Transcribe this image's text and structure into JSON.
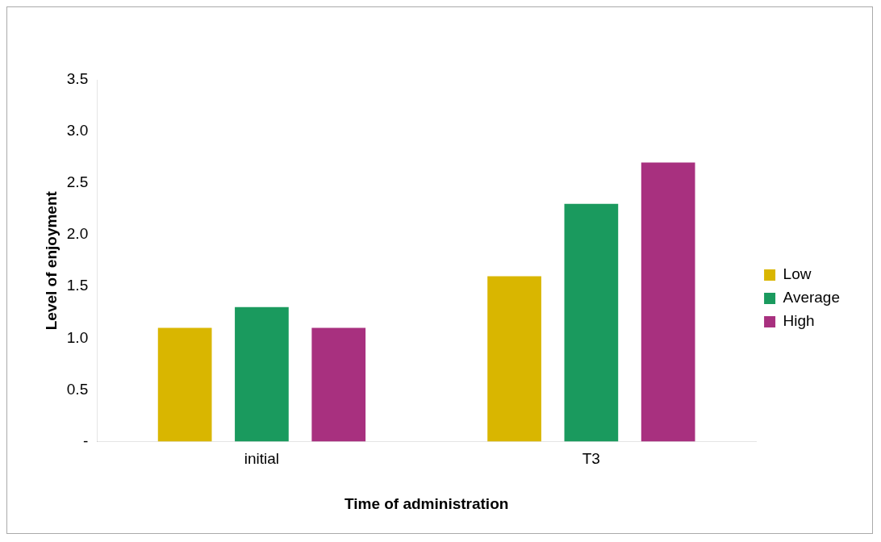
{
  "chart_data": {
    "type": "bar",
    "xlabel": "Time of administration",
    "ylabel": "Level of enjoyment",
    "categories": [
      "initial",
      "T3"
    ],
    "series": [
      {
        "name": "Low",
        "color": "#d9b600",
        "values": [
          1.1,
          1.6
        ]
      },
      {
        "name": "Average",
        "color": "#1a9a5e",
        "values": [
          1.3,
          2.3
        ]
      },
      {
        "name": "High",
        "color": "#a8307f",
        "values": [
          1.1,
          2.7
        ]
      }
    ],
    "ylim": [
      0,
      3.5
    ],
    "yticks": [
      {
        "value": 0,
        "label": "-"
      },
      0.5,
      {
        "value": 1,
        "label": "1.0"
      },
      1.5,
      {
        "value": 2,
        "label": "2.0"
      },
      2.5,
      {
        "value": 3,
        "label": "3.0"
      },
      3.5
    ],
    "grid": false,
    "legend": "right"
  }
}
